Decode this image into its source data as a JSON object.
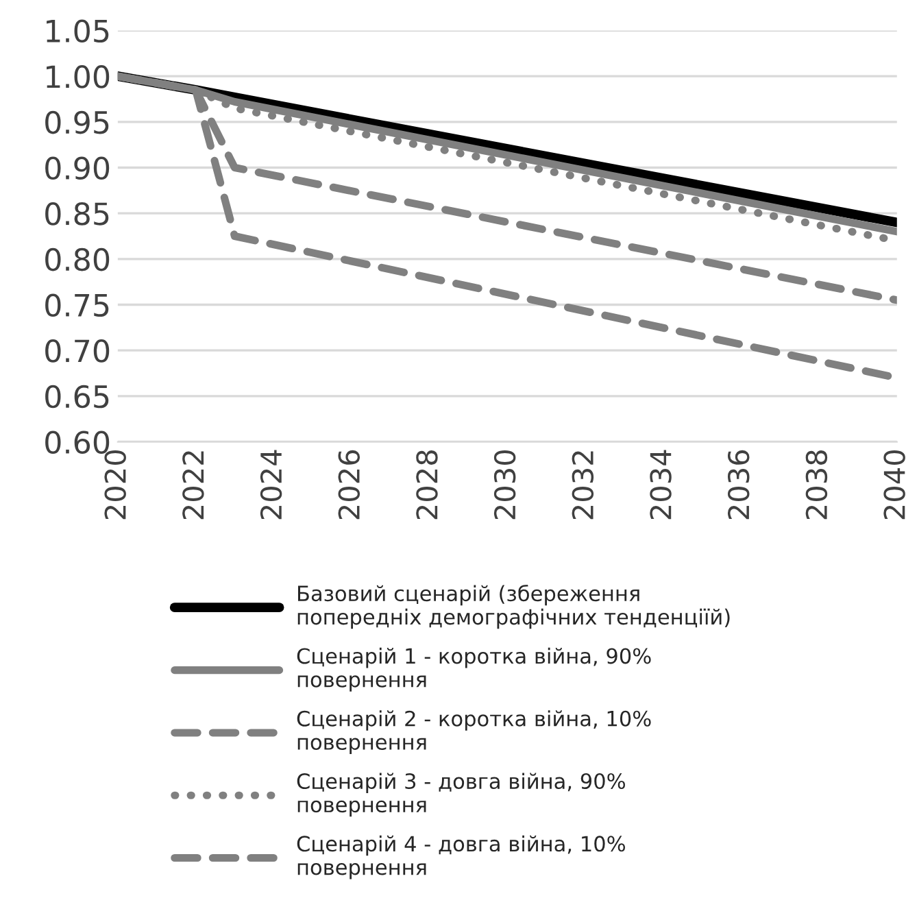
{
  "chart_data": {
    "type": "line",
    "xlim": [
      2020,
      2040
    ],
    "xticks": [
      2020,
      2022,
      2024,
      2026,
      2028,
      2030,
      2032,
      2034,
      2036,
      2038,
      2040
    ],
    "ylim": [
      0.6,
      1.05
    ],
    "yticks": [
      {
        "value": 0.6,
        "label": "0.60"
      },
      {
        "value": 0.65,
        "label": "0.65"
      },
      {
        "value": 0.7,
        "label": "0.70"
      },
      {
        "value": 0.75,
        "label": "0.75"
      },
      {
        "value": 0.8,
        "label": "0.80"
      },
      {
        "value": 0.85,
        "label": "0.85"
      },
      {
        "value": 0.9,
        "label": "0.90"
      },
      {
        "value": 0.95,
        "label": "0.95"
      },
      {
        "value": 1.0,
        "label": "1.00"
      },
      {
        "value": 1.05,
        "label": "1.05"
      }
    ],
    "grid": "y",
    "legend": "bottom",
    "series": [
      {
        "name": "Базовий сценарій (збереження\nпопередніх демографічних тенденціїй)",
        "color": "#000000",
        "line_style": "solid",
        "x": [
          2020,
          2022,
          2040
        ],
        "values": [
          1.0,
          0.985,
          0.84
        ]
      },
      {
        "name": "Сценарій 1 - коротка війна, 90%\nповернення",
        "color": "#808080",
        "line_style": "solid",
        "x": [
          2020,
          2022,
          2023,
          2040
        ],
        "values": [
          1.0,
          0.985,
          0.972,
          0.83
        ]
      },
      {
        "name": "Сценарій 2 - коротка війна, 10%\nповернення",
        "color": "#808080",
        "line_style": "dashed",
        "x": [
          2020,
          2022,
          2023,
          2040
        ],
        "values": [
          1.0,
          0.985,
          0.9,
          0.755
        ]
      },
      {
        "name": "Сценарій 3 - довга війна, 90%\nповернення",
        "color": "#808080",
        "line_style": "dotted",
        "x": [
          2020,
          2022,
          2023,
          2040
        ],
        "values": [
          1.0,
          0.985,
          0.965,
          0.82
        ]
      },
      {
        "name": "Сценарій 4 - довга війна, 10%\nповернення",
        "color": "#808080",
        "line_style": "dashed",
        "x": [
          2020,
          2022,
          2023,
          2040
        ],
        "values": [
          1.0,
          0.985,
          0.825,
          0.67
        ]
      }
    ]
  }
}
